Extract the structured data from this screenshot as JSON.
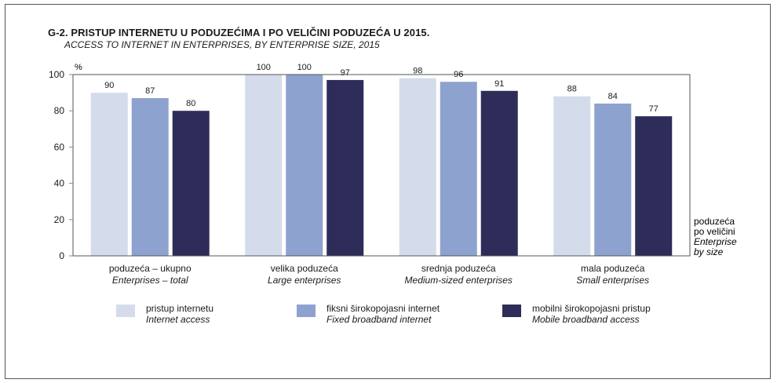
{
  "title": "G-2. PRISTUP INTERNETU U PODUZEĆIMA I PO VELIČINI PODUZEĆA U 2015.",
  "subtitle": "ACCESS TO INTERNET IN ENTERPRISES, BY ENTERPRISE SIZE, 2015",
  "colors": {
    "internet_access": "#d4dcec",
    "fixed_broadband": "#8ea2cf",
    "mobile_broadband": "#2e2c58",
    "plot_border": "#555555",
    "grid": "#888888"
  },
  "x_axis_title": {
    "hr_line1": "poduzeća",
    "hr_line2": "po veličini",
    "en_line1": "Enterprise",
    "en_line2": "by size"
  },
  "legend": [
    {
      "hr": "pristup internetu",
      "en": "Internet access"
    },
    {
      "hr": "fiksni širokopojasni internet",
      "en": "Fixed broadband internet"
    },
    {
      "hr": "mobilni širokopojasni pristup",
      "en": "Mobile broadband access"
    }
  ],
  "chart_data": {
    "type": "bar",
    "ylabel": "%",
    "ylim": [
      0,
      100
    ],
    "yticks": [
      0,
      20,
      40,
      60,
      80,
      100
    ],
    "grid": false,
    "legend_position": "bottom",
    "categories": [
      {
        "hr": "poduzeća – ukupno",
        "en": "Enterprises – total"
      },
      {
        "hr": "velika poduzeća",
        "en": "Large enterprises"
      },
      {
        "hr": "srednja poduzeća",
        "en": "Medium-sized enterprises"
      },
      {
        "hr": "mala poduzeća",
        "en": "Small enterprises"
      }
    ],
    "series": [
      {
        "name": "pristup internetu",
        "values": [
          90,
          100,
          98,
          88
        ]
      },
      {
        "name": "fiksni širokopojasni internet",
        "values": [
          87,
          100,
          96,
          84
        ]
      },
      {
        "name": "mobilni širokopojasni pristup",
        "values": [
          80,
          97,
          91,
          77
        ]
      }
    ]
  }
}
